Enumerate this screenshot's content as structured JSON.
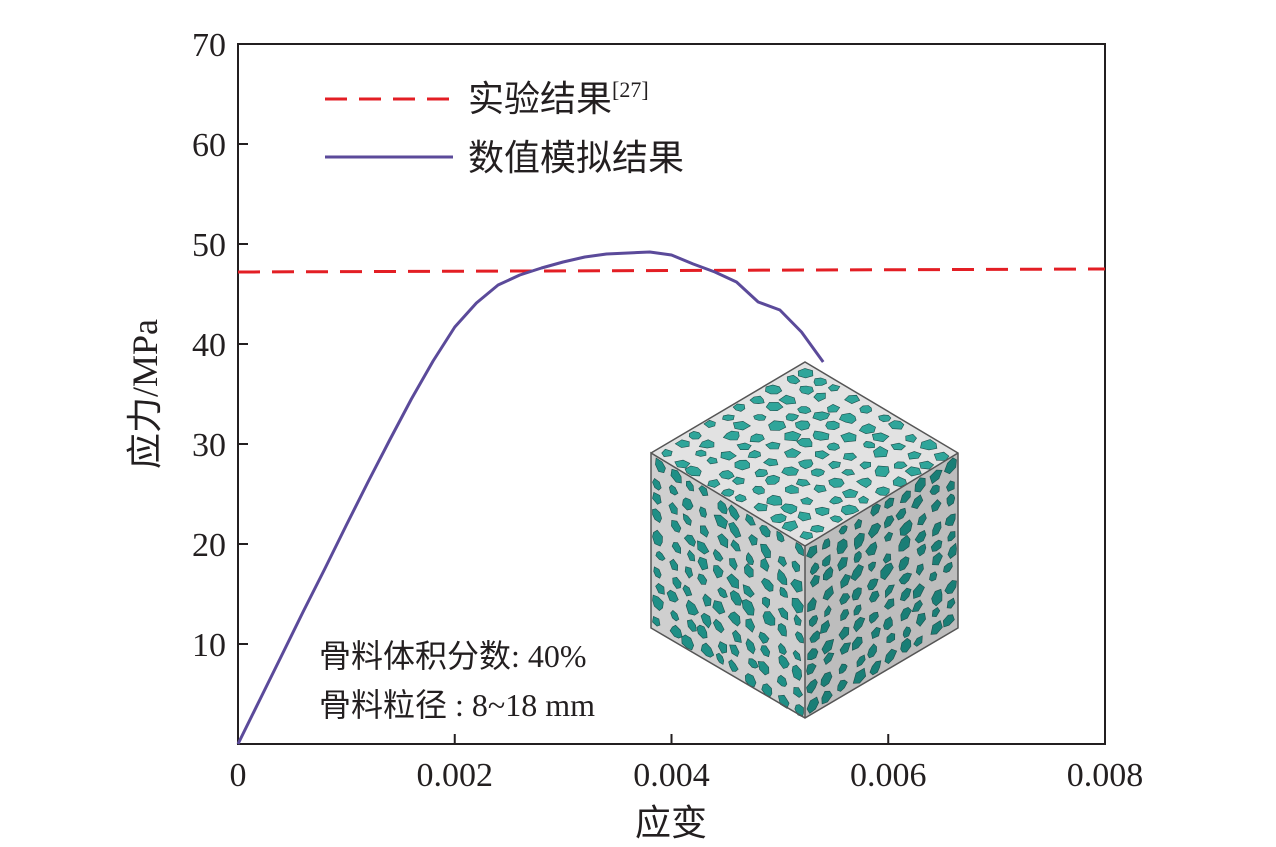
{
  "chart_data": {
    "type": "line",
    "title": "",
    "xlabel": "应变",
    "ylabel": "应力/MPa",
    "xlim": [
      0,
      0.008
    ],
    "ylim": [
      0,
      70
    ],
    "x_ticks": [
      0,
      0.002,
      0.004,
      0.006,
      0.008
    ],
    "x_tick_labels": [
      "0",
      "0.002",
      "0.004",
      "0.006",
      "0.008"
    ],
    "y_ticks": [
      10,
      20,
      30,
      40,
      50,
      60,
      70
    ],
    "y_tick_labels": [
      "10",
      "20",
      "30",
      "40",
      "50",
      "60",
      "70"
    ],
    "grid": false,
    "legend_position": "top-left",
    "series": [
      {
        "name": "实验结果",
        "name_superscript": "[27]",
        "style": "dashed",
        "color": "#e31e24",
        "x": [
          0,
          0.008
        ],
        "y": [
          47.2,
          47.5
        ]
      },
      {
        "name": "数值模拟结果",
        "style": "solid",
        "color": "#5b4a9a",
        "x": [
          0,
          0.0002,
          0.0004,
          0.0006,
          0.0008,
          0.001,
          0.0012,
          0.0014,
          0.0016,
          0.0018,
          0.002,
          0.0022,
          0.0024,
          0.0026,
          0.0028,
          0.003,
          0.0032,
          0.0034,
          0.0036,
          0.0038,
          0.004,
          0.0042,
          0.0044,
          0.0046,
          0.0048,
          0.005,
          0.0052,
          0.0054
        ],
        "y": [
          0,
          4.4,
          8.8,
          13.2,
          17.5,
          21.9,
          26.2,
          30.4,
          34.5,
          38.3,
          41.7,
          44.1,
          45.9,
          46.9,
          47.6,
          48.2,
          48.7,
          49.0,
          49.1,
          49.2,
          48.9,
          48.0,
          47.2,
          46.2,
          44.2,
          43.4,
          41.2,
          38.2
        ]
      }
    ],
    "annotations": [
      "骨料体积分数: 40%",
      "骨料粒径 : 8~18 mm"
    ]
  },
  "inset_colors": {
    "aggregate_top": "#2fa59a",
    "aggregate_left": "#1f8f86",
    "aggregate_right": "#1a7e76",
    "mortar_top": "#e2e2e2",
    "mortar_left": "#cfcfcf",
    "mortar_right": "#bdbdbd"
  }
}
